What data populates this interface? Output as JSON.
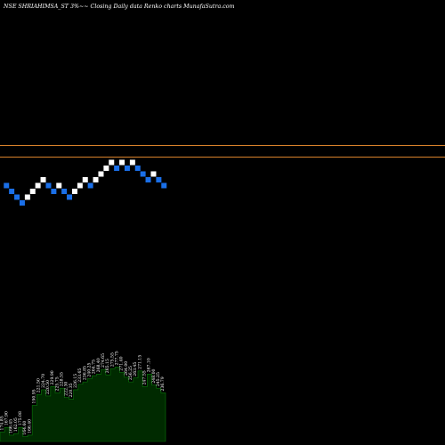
{
  "chart_data": {
    "type": "renko",
    "title": "NSE SHRIAHIMSA_ST 3%~~ Closing Daily data  Renko  charts MunafaSutra.com",
    "colors": {
      "background": "#000000",
      "up_brick": "#ffffff",
      "down_brick": "#1a6fe8",
      "reference_line": "#d9822b",
      "volume_fill": "#002a00",
      "volume_stroke": "#0a7a0a"
    },
    "reference_lines": [
      {
        "row": 7
      },
      {
        "row": 5
      }
    ],
    "bricks": [
      {
        "row": 0,
        "dir": "down"
      },
      {
        "row": -1,
        "dir": "down"
      },
      {
        "row": -2,
        "dir": "down"
      },
      {
        "row": -3,
        "dir": "down"
      },
      {
        "row": -2,
        "dir": "up"
      },
      {
        "row": -1,
        "dir": "up"
      },
      {
        "row": 0,
        "dir": "up"
      },
      {
        "row": 1,
        "dir": "up"
      },
      {
        "row": 0,
        "dir": "down"
      },
      {
        "row": -1,
        "dir": "down"
      },
      {
        "row": 0,
        "dir": "up"
      },
      {
        "row": -1,
        "dir": "down"
      },
      {
        "row": -2,
        "dir": "down"
      },
      {
        "row": -1,
        "dir": "up"
      },
      {
        "row": 0,
        "dir": "up"
      },
      {
        "row": 1,
        "dir": "up"
      },
      {
        "row": 0,
        "dir": "down"
      },
      {
        "row": 1,
        "dir": "up"
      },
      {
        "row": 2,
        "dir": "up"
      },
      {
        "row": 3,
        "dir": "up"
      },
      {
        "row": 4,
        "dir": "up"
      },
      {
        "row": 3,
        "dir": "down"
      },
      {
        "row": 4,
        "dir": "up"
      },
      {
        "row": 3,
        "dir": "down"
      },
      {
        "row": 4,
        "dir": "up"
      },
      {
        "row": 3,
        "dir": "down"
      },
      {
        "row": 2,
        "dir": "down"
      },
      {
        "row": 1,
        "dir": "down"
      },
      {
        "row": 2,
        "dir": "up"
      },
      {
        "row": 1,
        "dir": "down"
      },
      {
        "row": 0,
        "dir": "down"
      }
    ],
    "volume_labels": [
      "174.85",
      "167.90",
      "166.45",
      "162.05",
      "175.08",
      "164.60",
      "166.40",
      "190.95",
      "221.50",
      "224.70",
      "220.50",
      "229.90",
      "225.75",
      "228.55",
      "222.30",
      "220.35",
      "226.15",
      "233.65",
      "236.85",
      "240.25",
      "264.75",
      "268.40",
      "274.65",
      "265.15",
      "275.55",
      "277.75",
      "271.40",
      "264.00",
      "256.25",
      "263.45",
      "271.15",
      "247.55",
      "267.10",
      "248.00",
      "245.25",
      "236.79"
    ],
    "volume_levels": [
      0.12,
      0.18,
      0.08,
      0.1,
      0.18,
      0.06,
      0.08,
      0.46,
      0.6,
      0.66,
      0.58,
      0.7,
      0.62,
      0.68,
      0.56,
      0.54,
      0.66,
      0.73,
      0.76,
      0.8,
      0.84,
      0.86,
      0.92,
      0.85,
      0.93,
      0.95,
      0.88,
      0.82,
      0.76,
      0.81,
      0.9,
      0.7,
      0.86,
      0.72,
      0.68,
      0.62
    ]
  }
}
